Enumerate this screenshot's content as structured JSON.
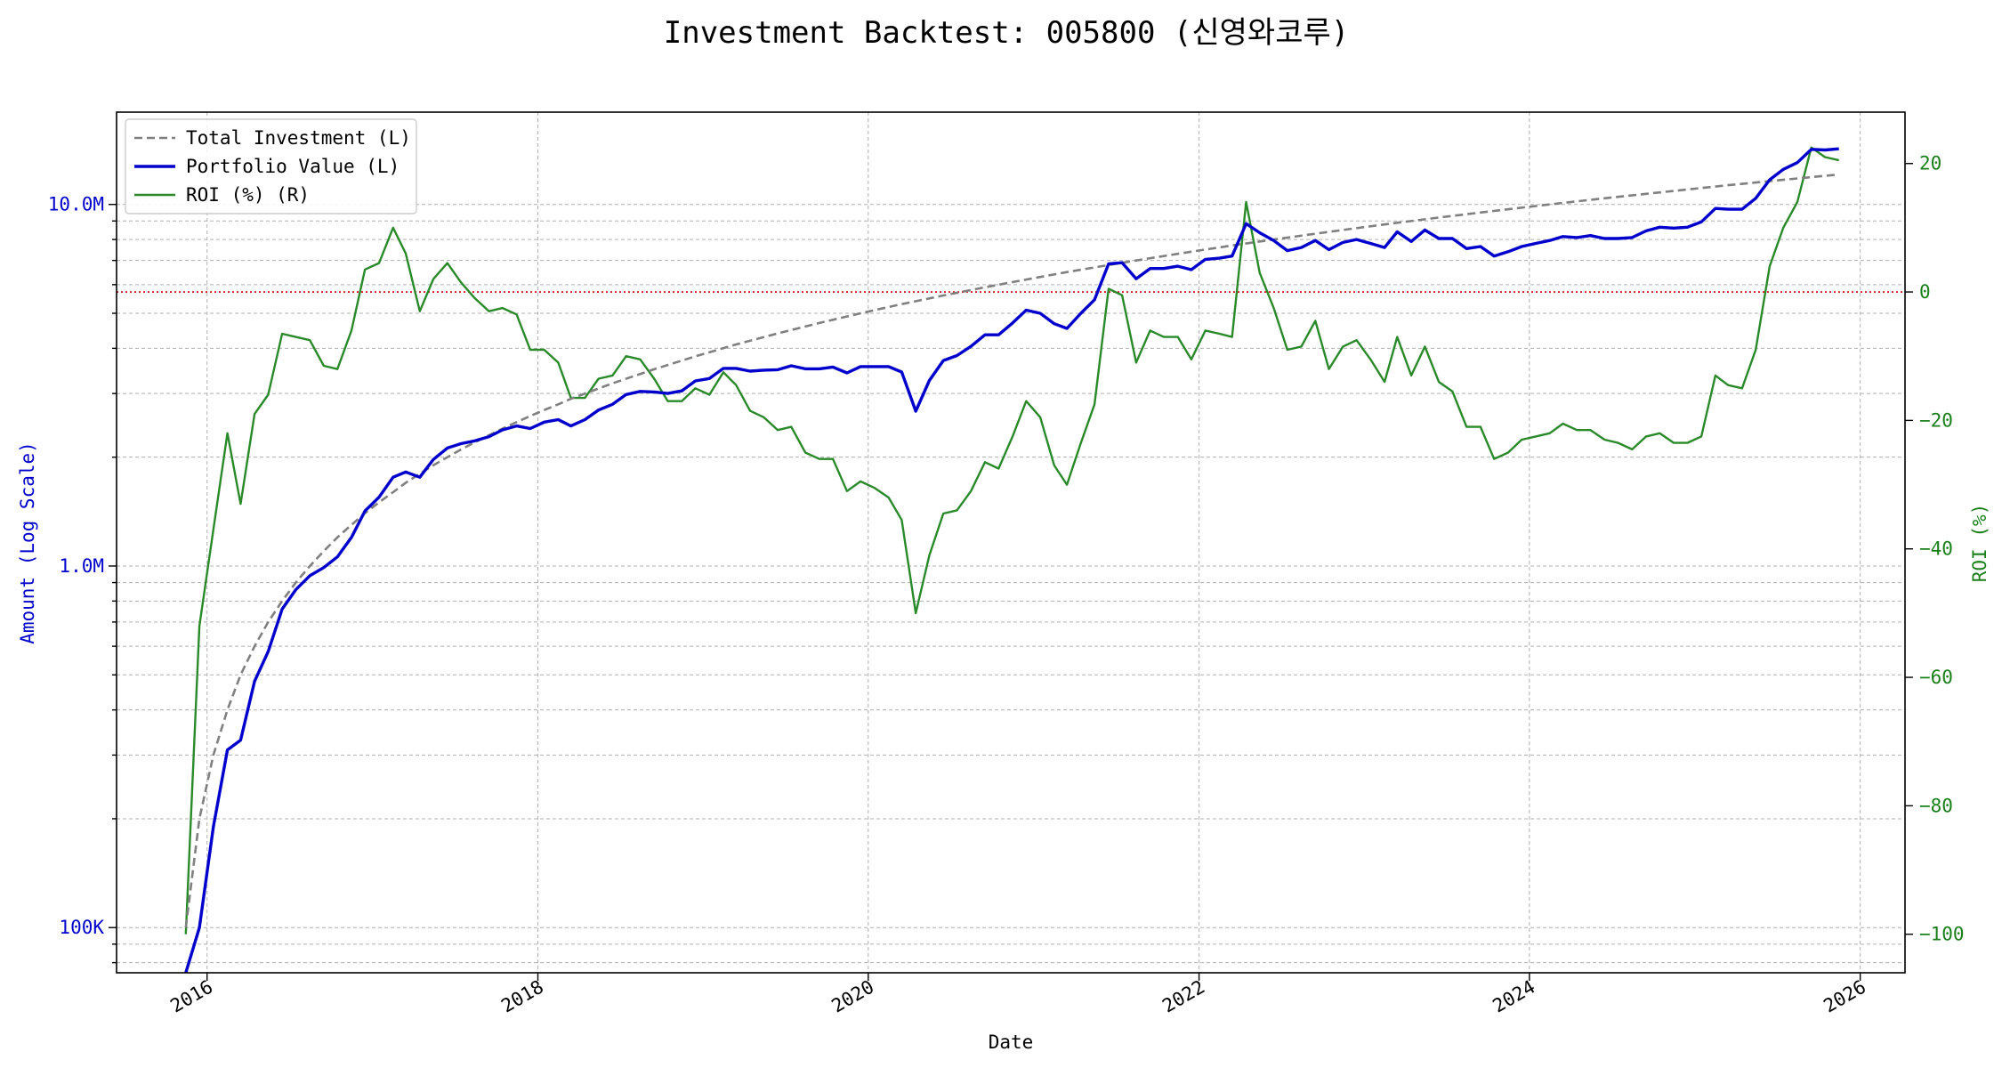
{
  "chart_data": {
    "type": "line",
    "title": "Investment Backtest: 005800 (신영와코루)",
    "xlabel": "Date",
    "ylabel_left": "Amount (Log Scale)",
    "ylabel_right": "ROI (%)",
    "y_left_scale": "log",
    "y_left_range": [
      75000,
      18000000
    ],
    "y_right_range": [
      -106,
      28
    ],
    "x_range": [
      "2015-06-15",
      "2026-04-10"
    ],
    "x_ticks": [
      "2016",
      "2018",
      "2020",
      "2022",
      "2024",
      "2026"
    ],
    "y_left_ticks": [
      {
        "value": 100000,
        "label": "100K"
      },
      {
        "value": 1000000,
        "label": "1.0M"
      },
      {
        "value": 10000000,
        "label": "10.0M"
      }
    ],
    "y_right_ticks": [
      {
        "value": 20,
        "label": "20"
      },
      {
        "value": 0,
        "label": "0"
      },
      {
        "value": -20,
        "label": "−20"
      },
      {
        "value": -40,
        "label": "−40"
      },
      {
        "value": -60,
        "label": "−60"
      },
      {
        "value": -80,
        "label": "−80"
      },
      {
        "value": -100,
        "label": "−100"
      }
    ],
    "grid": true,
    "zero_reference_line": {
      "value": 0,
      "axis": "right",
      "color": "#cc0000",
      "style": "dotted"
    },
    "legend_position": "top-left",
    "colors": {
      "investment": "#808080",
      "portfolio": "#0000cc",
      "roi": "#2a8a2a"
    },
    "series": [
      {
        "name": "Total Investment (L)",
        "axis": "left",
        "style": "dashed",
        "x": [
          "2015-11",
          "2015-12",
          "2016-01",
          "2016-02",
          "2016-03",
          "2016-04",
          "2016-05",
          "2016-06",
          "2016-07",
          "2016-08",
          "2016-09",
          "2016-10",
          "2016-11",
          "2016-12",
          "2017-01",
          "2017-02",
          "2017-03",
          "2017-04",
          "2017-05",
          "2017-06",
          "2017-07",
          "2017-08",
          "2017-09",
          "2017-10",
          "2017-11",
          "2017-12",
          "2018-01",
          "2018-02",
          "2018-03",
          "2018-06",
          "2018-09",
          "2018-12",
          "2019-03",
          "2019-06",
          "2019-09",
          "2019-12",
          "2020-03",
          "2020-06",
          "2020-09",
          "2020-12",
          "2021-03",
          "2021-06",
          "2021-09",
          "2021-12",
          "2022-03",
          "2022-06",
          "2022-09",
          "2022-12",
          "2023-03",
          "2023-06",
          "2023-09",
          "2023-12",
          "2024-03",
          "2024-06",
          "2024-09",
          "2024-12",
          "2025-03",
          "2025-06",
          "2025-09",
          "2025-11"
        ],
        "values": [
          100000,
          200000,
          300000,
          400000,
          500000,
          600000,
          700000,
          800000,
          900000,
          1000000,
          1100000,
          1200000,
          1300000,
          1400000,
          1500000,
          1600000,
          1700000,
          1800000,
          1900000,
          2000000,
          2100000,
          2200000,
          2300000,
          2400000,
          2500000,
          2600000,
          2700000,
          2800000,
          2900000,
          3200000,
          3500000,
          3800000,
          4100000,
          4400000,
          4700000,
          5000000,
          5300000,
          5600000,
          5900000,
          6200000,
          6500000,
          6800000,
          7100000,
          7400000,
          7700000,
          8000000,
          8300000,
          8600000,
          8900000,
          9200000,
          9500000,
          9800000,
          10100000,
          10400000,
          10700000,
          11000000,
          11300000,
          11600000,
          11900000,
          12100000
        ]
      },
      {
        "name": "Portfolio Value (L)",
        "axis": "left",
        "style": "solid",
        "x": [
          "2015-11",
          "2015-12",
          "2016-01",
          "2016-02",
          "2016-03",
          "2016-04",
          "2016-05",
          "2016-06",
          "2016-07",
          "2016-08",
          "2016-09",
          "2016-10",
          "2016-11",
          "2016-12",
          "2017-01",
          "2017-02",
          "2017-03",
          "2017-04",
          "2017-05",
          "2017-06",
          "2017-07",
          "2017-08",
          "2017-09",
          "2017-10",
          "2017-11",
          "2017-12",
          "2018-01",
          "2018-02",
          "2018-03",
          "2018-04",
          "2018-05",
          "2018-06",
          "2018-07",
          "2018-08",
          "2018-09",
          "2018-10",
          "2018-11",
          "2018-12",
          "2019-01",
          "2019-02",
          "2019-03",
          "2019-04",
          "2019-05",
          "2019-06",
          "2019-07",
          "2019-08",
          "2019-09",
          "2019-10",
          "2019-11",
          "2019-12",
          "2020-01",
          "2020-02",
          "2020-03",
          "2020-04",
          "2020-05",
          "2020-06",
          "2020-07",
          "2020-08",
          "2020-09",
          "2020-10",
          "2020-11",
          "2020-12",
          "2021-01",
          "2021-02",
          "2021-03",
          "2021-04",
          "2021-05",
          "2021-06",
          "2021-07",
          "2021-08",
          "2021-09",
          "2021-10",
          "2021-11",
          "2021-12",
          "2022-01",
          "2022-02",
          "2022-03",
          "2022-04",
          "2022-05",
          "2022-06",
          "2022-07",
          "2022-08",
          "2022-09",
          "2022-10",
          "2022-11",
          "2022-12",
          "2023-01",
          "2023-02",
          "2023-03",
          "2023-04",
          "2023-05",
          "2023-06",
          "2023-07",
          "2023-08",
          "2023-09",
          "2023-10",
          "2023-11",
          "2023-12",
          "2024-01",
          "2024-02",
          "2024-03",
          "2024-04",
          "2024-05",
          "2024-06",
          "2024-07",
          "2024-08",
          "2024-09",
          "2024-10",
          "2024-11",
          "2024-12",
          "2025-01",
          "2025-02",
          "2025-03",
          "2025-04",
          "2025-05",
          "2025-06",
          "2025-07",
          "2025-08",
          "2025-09",
          "2025-10",
          "2025-11"
        ],
        "values": [
          75000,
          100000,
          190000,
          310000,
          330000,
          480000,
          580000,
          760000,
          860000,
          940000,
          990000,
          1060000,
          1200000,
          1420000,
          1550000,
          1760000,
          1820000,
          1760000,
          1970000,
          2120000,
          2180000,
          2220000,
          2280000,
          2380000,
          2440000,
          2400000,
          2500000,
          2540000,
          2440000,
          2540000,
          2700000,
          2800000,
          2980000,
          3040000,
          3030000,
          3000000,
          3050000,
          3250000,
          3300000,
          3520000,
          3520000,
          3460000,
          3480000,
          3490000,
          3580000,
          3510000,
          3510000,
          3550000,
          3420000,
          3560000,
          3560000,
          3560000,
          3440000,
          2680000,
          3260000,
          3700000,
          3820000,
          4050000,
          4360000,
          4360000,
          4700000,
          5100000,
          5000000,
          4680000,
          4540000,
          5000000,
          5450000,
          6850000,
          6900000,
          6230000,
          6650000,
          6650000,
          6750000,
          6600000,
          7050000,
          7100000,
          7200000,
          8850000,
          8350000,
          7950000,
          7450000,
          7600000,
          7950000,
          7500000,
          7850000,
          8000000,
          7800000,
          7600000,
          8400000,
          7900000,
          8500000,
          8050000,
          8050000,
          7550000,
          7650000,
          7200000,
          7400000,
          7650000,
          7800000,
          7950000,
          8150000,
          8100000,
          8200000,
          8050000,
          8050000,
          8100000,
          8450000,
          8650000,
          8600000,
          8650000,
          8950000,
          9750000,
          9700000,
          9700000,
          10400000,
          11700000,
          12500000,
          13050000,
          14200000,
          14150000,
          14250000
        ]
      },
      {
        "name": "ROI (%) (R)",
        "axis": "right",
        "style": "solid",
        "x": [
          "2015-11",
          "2015-12",
          "2016-01",
          "2016-02",
          "2016-03",
          "2016-04",
          "2016-05",
          "2016-06",
          "2016-07",
          "2016-08",
          "2016-09",
          "2016-10",
          "2016-11",
          "2016-12",
          "2017-01",
          "2017-02",
          "2017-03",
          "2017-04",
          "2017-05",
          "2017-06",
          "2017-07",
          "2017-08",
          "2017-09",
          "2017-10",
          "2017-11",
          "2017-12",
          "2018-01",
          "2018-02",
          "2018-03",
          "2018-04",
          "2018-05",
          "2018-06",
          "2018-07",
          "2018-08",
          "2018-09",
          "2018-10",
          "2018-11",
          "2018-12",
          "2019-01",
          "2019-02",
          "2019-03",
          "2019-04",
          "2019-05",
          "2019-06",
          "2019-07",
          "2019-08",
          "2019-09",
          "2019-10",
          "2019-11",
          "2019-12",
          "2020-01",
          "2020-02",
          "2020-03",
          "2020-04",
          "2020-05",
          "2020-06",
          "2020-07",
          "2020-08",
          "2020-09",
          "2020-10",
          "2020-11",
          "2020-12",
          "2021-01",
          "2021-02",
          "2021-03",
          "2021-04",
          "2021-05",
          "2021-06",
          "2021-07",
          "2021-08",
          "2021-09",
          "2021-10",
          "2021-11",
          "2021-12",
          "2022-01",
          "2022-02",
          "2022-03",
          "2022-04",
          "2022-05",
          "2022-06",
          "2022-07",
          "2022-08",
          "2022-09",
          "2022-10",
          "2022-11",
          "2022-12",
          "2023-01",
          "2023-02",
          "2023-03",
          "2023-04",
          "2023-05",
          "2023-06",
          "2023-07",
          "2023-08",
          "2023-09",
          "2023-10",
          "2023-11",
          "2023-12",
          "2024-01",
          "2024-02",
          "2024-03",
          "2024-04",
          "2024-05",
          "2024-06",
          "2024-07",
          "2024-08",
          "2024-09",
          "2024-10",
          "2024-11",
          "2024-12",
          "2025-01",
          "2025-02",
          "2025-03",
          "2025-04",
          "2025-05",
          "2025-06",
          "2025-07",
          "2025-08",
          "2025-09",
          "2025-10",
          "2025-11"
        ],
        "values": [
          -100,
          -52,
          -37,
          -22,
          -33,
          -19,
          -16,
          -6.5,
          -7,
          -7.5,
          -11.5,
          -12,
          -6,
          3.5,
          4.5,
          10,
          6,
          -3,
          2,
          4.5,
          1.5,
          -1,
          -3,
          -2.5,
          -3.5,
          -9,
          -9,
          -11,
          -16.5,
          -16.5,
          -13.5,
          -13,
          -10,
          -10.5,
          -13.5,
          -17,
          -17,
          -15,
          -16,
          -12.5,
          -14.5,
          -18.5,
          -19.5,
          -21.5,
          -21,
          -25,
          -26,
          -26,
          -31,
          -29.5,
          -30.5,
          -32,
          -35.5,
          -50,
          -41,
          -34.5,
          -34,
          -31,
          -26.5,
          -27.5,
          -22.5,
          -17,
          -19.5,
          -27,
          -30,
          -23.5,
          -17.5,
          0.5,
          -0.5,
          -11,
          -6,
          -7,
          -7,
          -10.5,
          -6,
          -6.5,
          -7,
          14,
          3,
          -2.5,
          -9,
          -8.5,
          -4.5,
          -12,
          -8.5,
          -7.5,
          -10.5,
          -14,
          -7,
          -13,
          -8.5,
          -14,
          -15.5,
          -21,
          -21,
          -26,
          -25,
          -23,
          -22.5,
          -22,
          -20.5,
          -21.5,
          -21.5,
          -23,
          -23.5,
          -24.5,
          -22.5,
          -22,
          -23.5,
          -23.5,
          -22.5,
          -13,
          -14.5,
          -15,
          -9,
          4,
          10,
          14,
          22.5,
          21,
          20.5
        ]
      }
    ]
  }
}
